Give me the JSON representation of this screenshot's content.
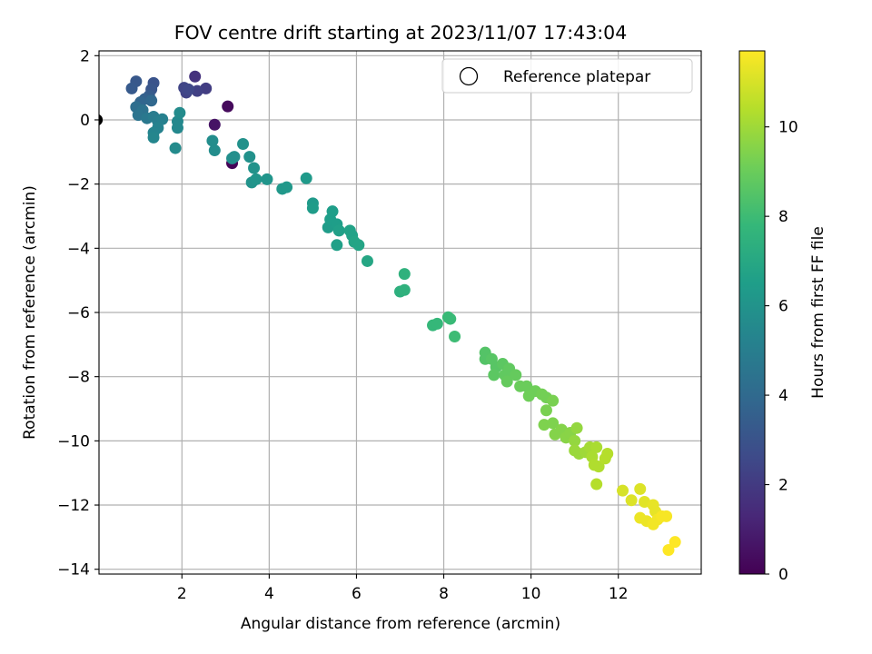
{
  "chart_data": {
    "type": "scatter",
    "title": "FOV centre drift starting at 2023/11/07 17:43:04",
    "xlabel": "Angular distance from reference (arcmin)",
    "ylabel": "Rotation from reference (arcmin)",
    "xlim": [
      0.1,
      13.9
    ],
    "ylim": [
      -14.15,
      2.15
    ],
    "xticks": [
      2,
      4,
      6,
      8,
      10,
      12
    ],
    "yticks": [
      2,
      0,
      -2,
      -4,
      -6,
      -8,
      -10,
      -12,
      -14
    ],
    "grid": true,
    "legend": {
      "position": "top-right",
      "entries": [
        "Reference platepar"
      ]
    },
    "reference_point": {
      "x": 0.05,
      "y": 0.0
    },
    "colorbar": {
      "label": "Hours from first FF file",
      "range": [
        0,
        11.7
      ],
      "ticks": [
        0,
        2,
        4,
        6,
        8,
        10
      ],
      "colormap": "viridis"
    },
    "colormap_stops": [
      "#440154",
      "#482878",
      "#3e4a89",
      "#31688e",
      "#26828e",
      "#1f9e89",
      "#35b779",
      "#6ece58",
      "#b5de2b",
      "#fde725"
    ],
    "series": [
      {
        "points": [
          {
            "x": 3.05,
            "y": 0.42,
            "c": 0.3
          },
          {
            "x": 2.75,
            "y": -0.15,
            "c": 0.6
          },
          {
            "x": 2.3,
            "y": 1.35,
            "c": 1.7
          },
          {
            "x": 2.55,
            "y": 0.98,
            "c": 2.1
          },
          {
            "x": 2.35,
            "y": 0.9,
            "c": 2.2
          },
          {
            "x": 2.1,
            "y": 0.85,
            "c": 2.3
          },
          {
            "x": 2.05,
            "y": 1.0,
            "c": 2.4
          },
          {
            "x": 2.15,
            "y": 0.95,
            "c": 2.5
          },
          {
            "x": 1.35,
            "y": 1.15,
            "c": 3.0
          },
          {
            "x": 1.3,
            "y": 0.95,
            "c": 3.1
          },
          {
            "x": 0.95,
            "y": 1.2,
            "c": 3.2
          },
          {
            "x": 0.85,
            "y": 0.98,
            "c": 3.3
          },
          {
            "x": 1.25,
            "y": 0.75,
            "c": 3.4
          },
          {
            "x": 1.15,
            "y": 0.65,
            "c": 3.6
          },
          {
            "x": 1.05,
            "y": 0.55,
            "c": 3.8
          },
          {
            "x": 1.3,
            "y": 0.6,
            "c": 3.9
          },
          {
            "x": 0.95,
            "y": 0.4,
            "c": 4.2
          },
          {
            "x": 1.1,
            "y": 0.3,
            "c": 4.4
          },
          {
            "x": 1.0,
            "y": 0.15,
            "c": 4.5
          },
          {
            "x": 1.2,
            "y": 0.05,
            "c": 4.7
          },
          {
            "x": 1.35,
            "y": 0.1,
            "c": 4.9
          },
          {
            "x": 1.45,
            "y": -0.05,
            "c": 5.0
          },
          {
            "x": 1.55,
            "y": 0.02,
            "c": 5.1
          },
          {
            "x": 1.45,
            "y": -0.25,
            "c": 5.2
          },
          {
            "x": 1.35,
            "y": -0.4,
            "c": 5.3
          },
          {
            "x": 1.35,
            "y": -0.55,
            "c": 5.4
          },
          {
            "x": 1.9,
            "y": -0.25,
            "c": 5.5
          },
          {
            "x": 1.9,
            "y": -0.05,
            "c": 5.5
          },
          {
            "x": 1.95,
            "y": 0.22,
            "c": 5.6
          },
          {
            "x": 1.85,
            "y": -0.88,
            "c": 5.6
          },
          {
            "x": 2.7,
            "y": -0.65,
            "c": 5.7
          },
          {
            "x": 2.75,
            "y": -0.95,
            "c": 5.7
          },
          {
            "x": 3.15,
            "y": -1.35,
            "c": 0.1
          },
          {
            "x": 3.15,
            "y": -1.2,
            "c": 5.8
          },
          {
            "x": 3.2,
            "y": -1.15,
            "c": 5.8
          },
          {
            "x": 3.4,
            "y": -0.75,
            "c": 5.9
          },
          {
            "x": 3.55,
            "y": -1.15,
            "c": 5.9
          },
          {
            "x": 3.65,
            "y": -1.5,
            "c": 6.0
          },
          {
            "x": 3.6,
            "y": -1.95,
            "c": 6.0
          },
          {
            "x": 3.7,
            "y": -1.85,
            "c": 6.1
          },
          {
            "x": 3.95,
            "y": -1.85,
            "c": 6.1
          },
          {
            "x": 4.3,
            "y": -2.15,
            "c": 6.2
          },
          {
            "x": 4.4,
            "y": -2.1,
            "c": 6.2
          },
          {
            "x": 4.85,
            "y": -1.82,
            "c": 6.3
          },
          {
            "x": 5.0,
            "y": -2.6,
            "c": 6.3
          },
          {
            "x": 5.0,
            "y": -2.75,
            "c": 6.4
          },
          {
            "x": 5.35,
            "y": -3.35,
            "c": 6.4
          },
          {
            "x": 5.4,
            "y": -3.1,
            "c": 6.5
          },
          {
            "x": 5.45,
            "y": -2.85,
            "c": 6.5
          },
          {
            "x": 5.55,
            "y": -3.25,
            "c": 6.5
          },
          {
            "x": 5.6,
            "y": -3.45,
            "c": 6.6
          },
          {
            "x": 5.55,
            "y": -3.9,
            "c": 6.6
          },
          {
            "x": 5.85,
            "y": -3.45,
            "c": 6.7
          },
          {
            "x": 5.9,
            "y": -3.6,
            "c": 6.7
          },
          {
            "x": 5.95,
            "y": -3.8,
            "c": 6.8
          },
          {
            "x": 6.05,
            "y": -3.9,
            "c": 6.8
          },
          {
            "x": 6.25,
            "y": -4.4,
            "c": 6.9
          },
          {
            "x": 7.1,
            "y": -4.8,
            "c": 7.5
          },
          {
            "x": 7.0,
            "y": -5.35,
            "c": 7.4
          },
          {
            "x": 7.1,
            "y": -5.3,
            "c": 7.5
          },
          {
            "x": 7.75,
            "y": -6.4,
            "c": 7.8
          },
          {
            "x": 7.85,
            "y": -6.35,
            "c": 7.8
          },
          {
            "x": 8.1,
            "y": -6.15,
            "c": 7.9
          },
          {
            "x": 8.15,
            "y": -6.2,
            "c": 7.9
          },
          {
            "x": 8.25,
            "y": -6.75,
            "c": 8.0
          },
          {
            "x": 8.95,
            "y": -7.25,
            "c": 8.5
          },
          {
            "x": 8.95,
            "y": -7.45,
            "c": 8.5
          },
          {
            "x": 9.1,
            "y": -7.45,
            "c": 8.6
          },
          {
            "x": 9.2,
            "y": -7.7,
            "c": 8.6
          },
          {
            "x": 9.15,
            "y": -7.95,
            "c": 8.7
          },
          {
            "x": 9.35,
            "y": -7.6,
            "c": 8.7
          },
          {
            "x": 9.4,
            "y": -7.95,
            "c": 8.8
          },
          {
            "x": 9.5,
            "y": -7.75,
            "c": 8.8
          },
          {
            "x": 9.45,
            "y": -8.15,
            "c": 8.9
          },
          {
            "x": 9.65,
            "y": -7.95,
            "c": 8.9
          },
          {
            "x": 9.75,
            "y": -8.3,
            "c": 9.0
          },
          {
            "x": 9.9,
            "y": -8.3,
            "c": 9.0
          },
          {
            "x": 9.95,
            "y": -8.6,
            "c": 9.1
          },
          {
            "x": 10.1,
            "y": -8.45,
            "c": 9.1
          },
          {
            "x": 10.25,
            "y": -8.55,
            "c": 9.2
          },
          {
            "x": 10.35,
            "y": -8.65,
            "c": 9.2
          },
          {
            "x": 10.5,
            "y": -8.75,
            "c": 9.3
          },
          {
            "x": 10.35,
            "y": -9.05,
            "c": 9.3
          },
          {
            "x": 10.3,
            "y": -9.5,
            "c": 9.4
          },
          {
            "x": 10.5,
            "y": -9.45,
            "c": 9.4
          },
          {
            "x": 10.55,
            "y": -9.8,
            "c": 9.5
          },
          {
            "x": 10.7,
            "y": -9.65,
            "c": 9.5
          },
          {
            "x": 10.8,
            "y": -9.9,
            "c": 9.6
          },
          {
            "x": 10.9,
            "y": -9.75,
            "c": 9.6
          },
          {
            "x": 11.05,
            "y": -9.6,
            "c": 9.8
          },
          {
            "x": 11.0,
            "y": -10.0,
            "c": 9.8
          },
          {
            "x": 11.0,
            "y": -10.3,
            "c": 9.9
          },
          {
            "x": 11.1,
            "y": -10.4,
            "c": 9.9
          },
          {
            "x": 11.25,
            "y": -10.35,
            "c": 10.0
          },
          {
            "x": 11.35,
            "y": -10.2,
            "c": 10.1
          },
          {
            "x": 11.5,
            "y": -10.2,
            "c": 10.2
          },
          {
            "x": 11.4,
            "y": -10.5,
            "c": 10.2
          },
          {
            "x": 11.45,
            "y": -10.75,
            "c": 10.3
          },
          {
            "x": 11.55,
            "y": -10.8,
            "c": 10.3
          },
          {
            "x": 11.75,
            "y": -10.4,
            "c": 10.4
          },
          {
            "x": 11.7,
            "y": -10.55,
            "c": 10.4
          },
          {
            "x": 11.5,
            "y": -11.35,
            "c": 10.4
          },
          {
            "x": 12.1,
            "y": -11.55,
            "c": 11.0
          },
          {
            "x": 12.3,
            "y": -11.85,
            "c": 11.1
          },
          {
            "x": 12.5,
            "y": -11.5,
            "c": 11.1
          },
          {
            "x": 12.6,
            "y": -11.9,
            "c": 11.2
          },
          {
            "x": 12.8,
            "y": -12.0,
            "c": 11.3
          },
          {
            "x": 12.85,
            "y": -12.2,
            "c": 11.3
          },
          {
            "x": 12.5,
            "y": -12.4,
            "c": 11.4
          },
          {
            "x": 12.65,
            "y": -12.5,
            "c": 11.4
          },
          {
            "x": 12.9,
            "y": -12.45,
            "c": 11.5
          },
          {
            "x": 12.8,
            "y": -12.6,
            "c": 11.5
          },
          {
            "x": 13.0,
            "y": -12.35,
            "c": 11.6
          },
          {
            "x": 13.1,
            "y": -12.35,
            "c": 11.6
          },
          {
            "x": 13.15,
            "y": -13.4,
            "c": 11.7
          },
          {
            "x": 13.3,
            "y": -13.15,
            "c": 11.7
          }
        ]
      }
    ]
  }
}
